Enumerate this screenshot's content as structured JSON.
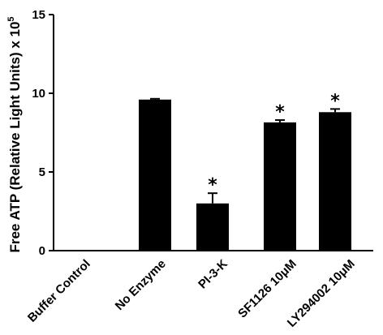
{
  "chart_data": {
    "type": "bar",
    "ylabel": "Free ATP (Relative Light Units) x 10",
    "ylabel_exponent": "5",
    "ylim": [
      0,
      15
    ],
    "yticks": [
      "0",
      "5",
      "10",
      "15"
    ],
    "grid": false,
    "legend": "none",
    "categories": [
      "Buffer Control",
      "No Enzyme",
      "PI-3-K",
      "SF1126 10μM",
      "LY294002 10μM"
    ],
    "values": [
      0,
      9.6,
      3.0,
      8.15,
      8.8
    ],
    "errors": [
      0,
      0.05,
      0.65,
      0.15,
      0.2
    ],
    "annotations": [
      "",
      "",
      "*",
      "*",
      "*"
    ],
    "bar_color": "#000000"
  }
}
